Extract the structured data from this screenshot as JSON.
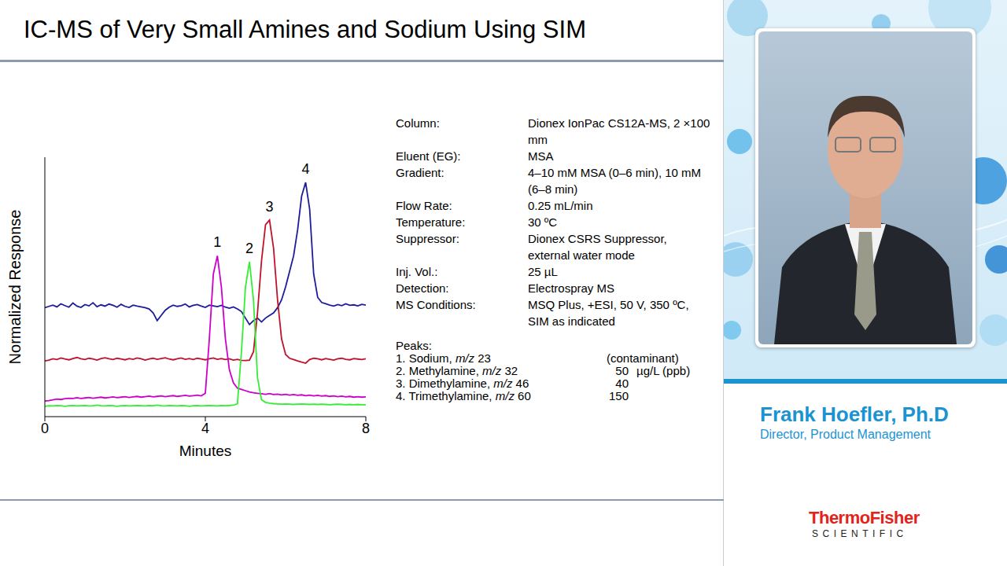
{
  "chart_data": {
    "type": "line",
    "xlabel": "Minutes",
    "ylabel": "Normalized Response",
    "xlim": [
      0,
      8
    ],
    "xticks": [
      0,
      4,
      8
    ],
    "ylim": [
      0,
      100
    ],
    "tick_labels": "x",
    "grid": false,
    "x": [
      0,
      0.1,
      0.2,
      0.3,
      0.4,
      0.5,
      0.6,
      0.7,
      0.8,
      0.9,
      1,
      1.1,
      1.2,
      1.3,
      1.4,
      1.5,
      1.6,
      1.7,
      1.8,
      1.9,
      2,
      2.1,
      2.2,
      2.3,
      2.4,
      2.5,
      2.6,
      2.7,
      2.8,
      2.9,
      3,
      3.1,
      3.2,
      3.3,
      3.4,
      3.5,
      3.6,
      3.7,
      3.8,
      3.9,
      4,
      4.1,
      4.2,
      4.3,
      4.4,
      4.5,
      4.6,
      4.7,
      4.8,
      4.9,
      5,
      5.1,
      5.2,
      5.3,
      5.4,
      5.5,
      5.6,
      5.7,
      5.8,
      5.9,
      6,
      6.1,
      6.2,
      6.3,
      6.4,
      6.5,
      6.6,
      6.7,
      6.8,
      6.9,
      7,
      7.1,
      7.2,
      7.3,
      7.4,
      7.5,
      7.6,
      7.7,
      7.8,
      7.9,
      8
    ],
    "series": [
      {
        "name": "4",
        "color": "#1c1c9c",
        "values": [
          42,
          42.5,
          43,
          42.3,
          43.5,
          42.8,
          42.2,
          43.8,
          42.6,
          42.1,
          43.2,
          42.7,
          43.9,
          42.4,
          43.1,
          42.6,
          43.4,
          42.9,
          42.2,
          43.3,
          42.5,
          42.1,
          43,
          42.6,
          42.3,
          42,
          41.5,
          40,
          37,
          39,
          41,
          42.2,
          43,
          42.5,
          42.8,
          43.4,
          42.3,
          42.9,
          43.2,
          42.6,
          42.1,
          43,
          42.7,
          42.4,
          42.9,
          42.2,
          41.8,
          42.3,
          41.5,
          40.5,
          38,
          35.5,
          37,
          38,
          36.5,
          38,
          39,
          40,
          42,
          45,
          50,
          56,
          62,
          72,
          85,
          90.3,
          80,
          55,
          46,
          44,
          43.5,
          43,
          42.6,
          43.2,
          42.8,
          43.5,
          42.9,
          43.1,
          42.7,
          43.3,
          43
        ]
      },
      {
        "name": "3",
        "color": "#c0122a",
        "values": [
          21.5,
          21.8,
          22.3,
          22,
          22.6,
          22.2,
          21.9,
          22.4,
          22.8,
          22.3,
          22,
          22.5,
          22.2,
          21.8,
          22.4,
          22.7,
          22.3,
          22,
          22.5,
          22.2,
          21.9,
          22.4,
          22.1,
          22.6,
          22.3,
          21.8,
          22.2,
          22.5,
          22.1,
          22.4,
          22.7,
          22.2,
          21.9,
          22.3,
          22.6,
          22.1,
          22.4,
          22,
          22.5,
          22.2,
          21.9,
          22.3,
          22.6,
          22.1,
          22.4,
          22,
          22.3,
          21.8,
          22.1,
          21.7,
          21.6,
          21.8,
          25,
          40,
          60,
          74,
          75.8,
          65,
          45,
          30,
          24,
          22.5,
          22,
          21.5,
          21,
          20.6,
          22,
          22.5,
          22.3,
          21.9,
          22.4,
          22.1,
          21.8,
          22.3,
          22.5,
          22.1,
          21.9,
          22.4,
          22.2,
          22,
          22.3
        ]
      },
      {
        "name": "1",
        "color": "#cc00cc",
        "values": [
          6,
          6.2,
          6.5,
          6.8,
          6.6,
          6.9,
          7.1,
          7,
          7.3,
          7,
          7.2,
          7.4,
          7.1,
          7.3,
          7.5,
          7.2,
          7.4,
          7.6,
          7.3,
          7.5,
          7.7,
          7.4,
          7.6,
          7.8,
          7.5,
          7.7,
          7.9,
          7.6,
          7.8,
          8,
          7.7,
          7.9,
          8.1,
          7.8,
          8,
          8.2,
          7.9,
          8.1,
          8.3,
          8,
          9,
          30,
          55,
          62,
          50,
          30,
          18,
          13,
          11,
          10.5,
          10,
          9.5,
          9.2,
          9,
          8.8,
          8.6,
          8.9,
          8.5,
          8.7,
          8.4,
          8.6,
          8.3,
          8.5,
          8.2,
          8.4,
          8.1,
          8.3,
          8,
          8.2,
          7.9,
          8.1,
          7.8,
          8,
          7.7,
          7.9,
          7.6,
          7.8,
          7.5,
          7.7,
          7.5,
          7.6
        ]
      },
      {
        "name": "2",
        "color": "#33ee33",
        "values": [
          4,
          4.2,
          4.1,
          4.3,
          4.2,
          4,
          4.2,
          4.3,
          4.1,
          4.2,
          4.3,
          4.1,
          4.2,
          4.4,
          4.2,
          4.1,
          4.3,
          4.2,
          4,
          4.2,
          4.3,
          4.1,
          4.2,
          4.3,
          4.2,
          4.1,
          4.3,
          4.2,
          4.4,
          4.2,
          4.1,
          4.3,
          4.2,
          4.1,
          4.3,
          4.2,
          4,
          4.2,
          4.3,
          4.1,
          4.2,
          4.3,
          4.2,
          4.1,
          4.3,
          4.2,
          4.3,
          4.4,
          5,
          25,
          50,
          59.7,
          45,
          15,
          6.5,
          5.5,
          5.2,
          5,
          4.9,
          4.8,
          4.9,
          4.8,
          4.7,
          4.8,
          4.9,
          4.8,
          4.7,
          4.8,
          4.7,
          4.8,
          4.7,
          4.6,
          4.7,
          4.8,
          4.7,
          4.6,
          4.7,
          4.6,
          4.7,
          4.6,
          4.6
        ]
      }
    ]
  },
  "slide": {
    "title": "IC-MS of Very Small Amines and Sodium Using SIM",
    "conditions": [
      {
        "label": "Column:",
        "value": "Dionex IonPac CS12A-MS, 2 ×100 mm"
      },
      {
        "label": "Eluent (EG):",
        "value": "MSA"
      },
      {
        "label": "Gradient:",
        "value": "4–10 mM MSA (0–6 min), 10 mM (6–8 min)"
      },
      {
        "label": "Flow Rate:",
        "value": "0.25 mL/min"
      },
      {
        "label": "Temperature:",
        "value": "30 ºC"
      },
      {
        "label": "Suppressor:",
        "value": "Dionex CSRS Suppressor, external water mode"
      },
      {
        "label": "Inj. Vol.:",
        "value": "25 µL"
      },
      {
        "label": "Detection:",
        "value": "Electrospray MS"
      },
      {
        "label": "MS Conditions:",
        "value": "MSQ Plus, +ESI, 50 V, 350 ºC, SIM as indicated"
      }
    ],
    "peaks_heading": "Peaks:",
    "peaks": [
      {
        "text": "1. Sodium, ",
        "italic": "m/z",
        "suffix": " 23",
        "amount": "(contaminant)"
      },
      {
        "text": "2. Methylamine, ",
        "italic": "m/z",
        "suffix": " 32",
        "amount": "50",
        "unit": "µg/L (ppb)"
      },
      {
        "text": "3. Dimethylamine, ",
        "italic": "m/z",
        "suffix": " 46",
        "amount": "40"
      },
      {
        "text": "4. Trimethylamine, ",
        "italic": "m/z",
        "suffix": " 60",
        "amount": "150"
      }
    ],
    "presenter": {
      "name": "Frank Hoefler, Ph.D",
      "role": "Director, Product Management"
    },
    "logo": {
      "brand": "ThermoFisher",
      "sub": "SCIENTIFIC"
    }
  }
}
